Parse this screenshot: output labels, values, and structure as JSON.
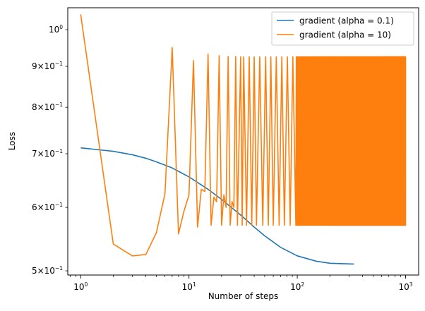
{
  "chart_data": {
    "type": "line",
    "title": "",
    "xlabel": "Number of steps",
    "ylabel": "Loss",
    "xscale": "log",
    "yscale": "log",
    "xlim": [
      0.76,
      1320
    ],
    "ylim": [
      0.494,
      1.065
    ],
    "grid": false,
    "legend_position": "top-right",
    "x_ticks": [
      {
        "value": 1,
        "base": "10",
        "exp": "0"
      },
      {
        "value": 10,
        "base": "10",
        "exp": "1"
      },
      {
        "value": 100,
        "base": "10",
        "exp": "2"
      },
      {
        "value": 1000,
        "base": "10",
        "exp": "3"
      }
    ],
    "y_ticks": [
      {
        "value": 0.5,
        "mant": "5",
        "base": "10",
        "exp": "−1"
      },
      {
        "value": 0.6,
        "mant": "6",
        "base": "10",
        "exp": "−1"
      },
      {
        "value": 0.7,
        "mant": "7",
        "base": "10",
        "exp": "−1"
      },
      {
        "value": 0.8,
        "mant": "8",
        "base": "10",
        "exp": "−1"
      },
      {
        "value": 0.9,
        "mant": "9",
        "base": "10",
        "exp": "−1"
      },
      {
        "value": 1.0,
        "mant": "",
        "base": "10",
        "exp": "0"
      }
    ],
    "series": [
      {
        "name": "gradient (alpha = 0.1)",
        "color": "#1f77b4",
        "points": [
          [
            1,
            0.712
          ],
          [
            2,
            0.705
          ],
          [
            3,
            0.698
          ],
          [
            4,
            0.691
          ],
          [
            5,
            0.684
          ],
          [
            7,
            0.672
          ],
          [
            10,
            0.655
          ],
          [
            15,
            0.632
          ],
          [
            20,
            0.614
          ],
          [
            30,
            0.587
          ],
          [
            40,
            0.567
          ],
          [
            50,
            0.553
          ],
          [
            70,
            0.535
          ],
          [
            100,
            0.522
          ],
          [
            150,
            0.514
          ],
          [
            200,
            0.511
          ],
          [
            250,
            0.5105
          ],
          [
            333,
            0.5098
          ]
        ]
      },
      {
        "name": "gradient (alpha = 10)",
        "color": "#ff7f0e",
        "points": [
          [
            1,
            1.045
          ],
          [
            2,
            0.54
          ],
          [
            3,
            0.522
          ],
          [
            4,
            0.524
          ],
          [
            5,
            0.558
          ],
          [
            6,
            0.624
          ],
          [
            7,
            0.95
          ],
          [
            8,
            0.556
          ],
          [
            9,
            0.594
          ],
          [
            10,
            0.622
          ],
          [
            11,
            0.915
          ],
          [
            12,
            0.567
          ],
          [
            13,
            0.632
          ],
          [
            14,
            0.628
          ],
          [
            15,
            0.932
          ],
          [
            16,
            0.57
          ],
          [
            17,
            0.618
          ],
          [
            18,
            0.61
          ],
          [
            19,
            0.928
          ],
          [
            20,
            0.57
          ],
          [
            21,
            0.622
          ],
          [
            22,
            0.6
          ],
          [
            23,
            0.926
          ],
          [
            24,
            0.57
          ],
          [
            25,
            0.61
          ],
          [
            26,
            0.6
          ],
          [
            27,
            0.926
          ],
          [
            28,
            0.57
          ],
          [
            30,
            0.925
          ],
          [
            31,
            0.57
          ],
          [
            32,
            0.925
          ],
          [
            34,
            0.57
          ],
          [
            36,
            0.925
          ],
          [
            38,
            0.57
          ],
          [
            40,
            0.925
          ],
          [
            42,
            0.57
          ],
          [
            45,
            0.925
          ],
          [
            48,
            0.57
          ],
          [
            51,
            0.925
          ],
          [
            54,
            0.57
          ],
          [
            57,
            0.925
          ],
          [
            60,
            0.57
          ],
          [
            64,
            0.925
          ],
          [
            68,
            0.57
          ],
          [
            72,
            0.925
          ],
          [
            76,
            0.57
          ],
          [
            81,
            0.925
          ],
          [
            86,
            0.57
          ],
          [
            91,
            0.925
          ],
          [
            97,
            0.57
          ]
        ],
        "oscillation": {
          "from_step": 97,
          "to_step": 1000,
          "high": 0.925,
          "low": 0.57
        }
      }
    ]
  }
}
